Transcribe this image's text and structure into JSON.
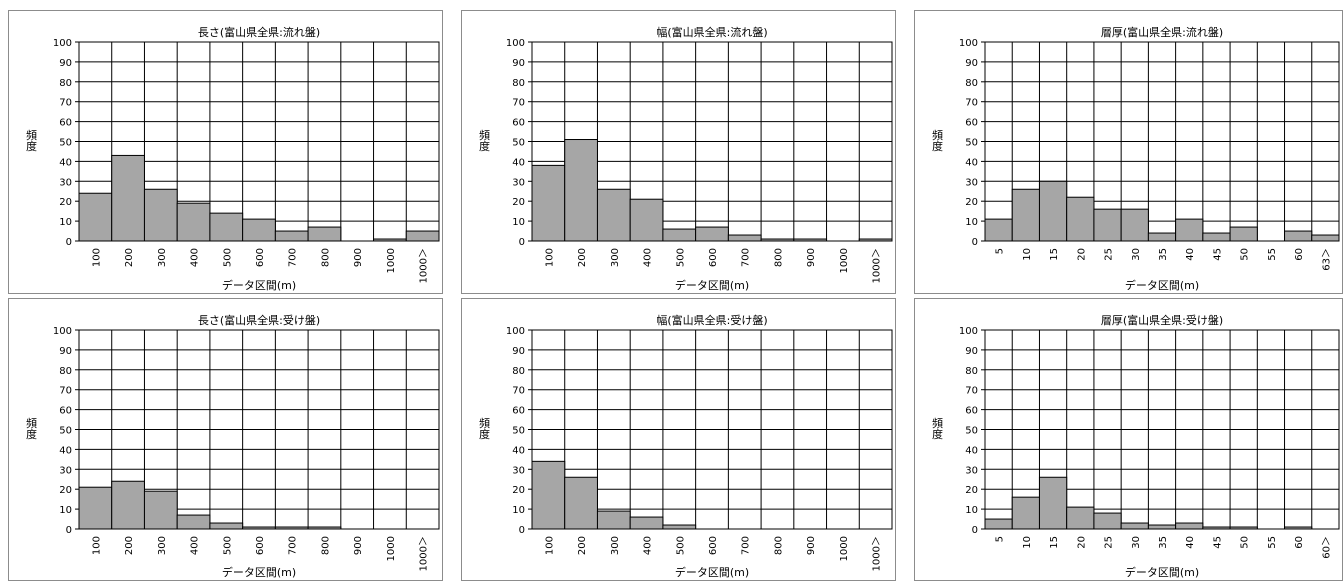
{
  "chart_data": [
    {
      "type": "bar",
      "title": "長さ(富山県全県:流れ盤)",
      "xlabel": "データ区間(m)",
      "ylabel": "頻度",
      "ylim": [
        0,
        100
      ],
      "yticks": [
        0,
        10,
        20,
        30,
        40,
        50,
        60,
        70,
        80,
        90,
        100
      ],
      "categories": [
        "100",
        "200",
        "300",
        "400",
        "500",
        "600",
        "700",
        "800",
        "900",
        "1000",
        "1000＞"
      ],
      "values": [
        24,
        43,
        26,
        19,
        14,
        11,
        5,
        7,
        0,
        1,
        5
      ],
      "grid": true,
      "bar_color": "#a6a6a6"
    },
    {
      "type": "bar",
      "title": "幅(富山県全県:流れ盤)",
      "xlabel": "データ区間(m)",
      "ylabel": "頻度",
      "ylim": [
        0,
        100
      ],
      "yticks": [
        0,
        10,
        20,
        30,
        40,
        50,
        60,
        70,
        80,
        90,
        100
      ],
      "categories": [
        "100",
        "200",
        "300",
        "400",
        "500",
        "600",
        "700",
        "800",
        "900",
        "1000",
        "1000＞"
      ],
      "values": [
        38,
        51,
        26,
        21,
        6,
        7,
        3,
        1,
        1,
        0,
        1
      ],
      "grid": true,
      "bar_color": "#a6a6a6"
    },
    {
      "type": "bar",
      "title": "層厚(富山県全県:流れ盤)",
      "xlabel": "データ区間(m)",
      "ylabel": "頻度",
      "ylim": [
        0,
        100
      ],
      "yticks": [
        0,
        10,
        20,
        30,
        40,
        50,
        60,
        70,
        80,
        90,
        100
      ],
      "categories": [
        "5",
        "10",
        "15",
        "20",
        "25",
        "30",
        "35",
        "40",
        "45",
        "50",
        "55",
        "60",
        "63＞"
      ],
      "values": [
        11,
        26,
        30,
        22,
        16,
        16,
        4,
        11,
        4,
        7,
        0,
        5,
        3
      ],
      "grid": true,
      "bar_color": "#a6a6a6"
    },
    {
      "type": "bar",
      "title": "長さ(富山県全県:受け盤)",
      "xlabel": "データ区間(m)",
      "ylabel": "頻度",
      "ylim": [
        0,
        100
      ],
      "yticks": [
        0,
        10,
        20,
        30,
        40,
        50,
        60,
        70,
        80,
        90,
        100
      ],
      "categories": [
        "100",
        "200",
        "300",
        "400",
        "500",
        "600",
        "700",
        "800",
        "900",
        "1000",
        "1000＞"
      ],
      "values": [
        21,
        24,
        19,
        7,
        3,
        1,
        1,
        1,
        0,
        0,
        0
      ],
      "grid": true,
      "bar_color": "#a6a6a6"
    },
    {
      "type": "bar",
      "title": "幅(富山県全県:受け盤)",
      "xlabel": "データ区間(m)",
      "ylabel": "頻度",
      "ylim": [
        0,
        100
      ],
      "yticks": [
        0,
        10,
        20,
        30,
        40,
        50,
        60,
        70,
        80,
        90,
        100
      ],
      "categories": [
        "100",
        "200",
        "300",
        "400",
        "500",
        "600",
        "700",
        "800",
        "900",
        "1000",
        "1000＞"
      ],
      "values": [
        34,
        26,
        9,
        6,
        2,
        0,
        0,
        0,
        0,
        0,
        0
      ],
      "grid": true,
      "bar_color": "#a6a6a6"
    },
    {
      "type": "bar",
      "title": "層厚(富山県全県:受け盤)",
      "xlabel": "データ区間(m)",
      "ylabel": "頻度",
      "ylim": [
        0,
        100
      ],
      "yticks": [
        0,
        10,
        20,
        30,
        40,
        50,
        60,
        70,
        80,
        90,
        100
      ],
      "categories": [
        "5",
        "10",
        "15",
        "20",
        "25",
        "30",
        "35",
        "40",
        "45",
        "50",
        "55",
        "60",
        "60＞"
      ],
      "values": [
        5,
        16,
        26,
        11,
        8,
        3,
        2,
        3,
        1,
        1,
        0,
        1,
        0
      ],
      "grid": true,
      "bar_color": "#a6a6a6"
    }
  ]
}
